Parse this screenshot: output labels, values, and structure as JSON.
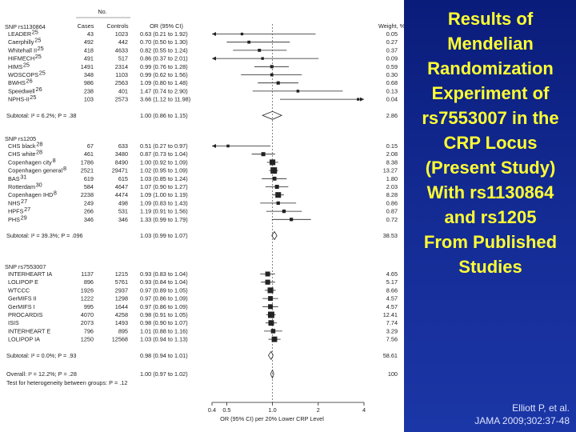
{
  "slide": {
    "title_lines": [
      "Results of",
      "Mendelian",
      "Randomization",
      "Experiment of",
      "rs7553007 in the",
      "CRP Locus",
      "(Present Study)",
      "With rs1130864",
      "and rs1205",
      "From Published",
      "Studies"
    ],
    "citation_lines": [
      "Elliott P, et al.",
      "JAMA 2009;302:37-48"
    ],
    "colors": {
      "background": "#13298f",
      "title": "#ffff33",
      "citation": "#dde3ff",
      "plot_background": "#ffffff"
    }
  },
  "chart_data": {
    "type": "forest",
    "headers": {
      "no": "No.",
      "cases": "Cases",
      "controls": "Controls",
      "or": "OR (95% CI)",
      "weight": "Weight, %"
    },
    "xaxis": {
      "scale": "log",
      "range": [
        0.4,
        4
      ],
      "ticks": [
        "0.4",
        "0.5",
        "1.0",
        "2",
        "4"
      ],
      "label": "OR (95% CI) per 20% Lower CRP Level",
      "reference": 1.0
    },
    "groups": [
      {
        "title": "SNP rs1130864",
        "studies": [
          {
            "name": "LEADER",
            "ref": "25",
            "cases": "43",
            "controls": "1023",
            "or_text": "0.63 (0.21 to 1.92)",
            "or": 0.63,
            "lo": 0.21,
            "hi": 1.92,
            "weight": "0.05"
          },
          {
            "name": "Caerphilly",
            "ref": "25",
            "cases": "492",
            "controls": "442",
            "or_text": "0.70 (0.50 to 1.30)",
            "or": 0.7,
            "lo": 0.5,
            "hi": 1.3,
            "weight": "0.27"
          },
          {
            "name": "Whitehall II",
            "ref": "25",
            "cases": "418",
            "controls": "4633",
            "or_text": "0.82 (0.55 to 1.24)",
            "or": 0.82,
            "lo": 0.55,
            "hi": 1.24,
            "weight": "0.37"
          },
          {
            "name": "HIFMECH",
            "ref": "25",
            "cases": "491",
            "controls": "517",
            "or_text": "0.86 (0.37 to 2.01)",
            "or": 0.86,
            "lo": 0.37,
            "hi": 2.01,
            "weight": "0.09"
          },
          {
            "name": "HIMS",
            "ref": "25",
            "cases": "1491",
            "controls": "2314",
            "or_text": "0.99 (0.76 to 1.28)",
            "or": 0.99,
            "lo": 0.76,
            "hi": 1.28,
            "weight": "0.59"
          },
          {
            "name": "WOSCOPS",
            "ref": "25",
            "cases": "348",
            "controls": "1103",
            "or_text": "0.99 (0.62 to 1.56)",
            "or": 0.99,
            "lo": 0.62,
            "hi": 1.56,
            "weight": "0.30"
          },
          {
            "name": "BWHS",
            "ref": "26",
            "cases": "986",
            "controls": "2563",
            "or_text": "1.09 (0.80 to 1.48)",
            "or": 1.09,
            "lo": 0.8,
            "hi": 1.48,
            "weight": "0.68"
          },
          {
            "name": "Speedwell",
            "ref": "26",
            "cases": "238",
            "controls": "401",
            "or_text": "1.47 (0.74 to 2.90)",
            "or": 1.47,
            "lo": 0.74,
            "hi": 2.9,
            "weight": "0.13"
          },
          {
            "name": "NPHS-II",
            "ref": "25",
            "cases": "103",
            "controls": "2573",
            "or_text": "3.66 (1.12 to 11.98)",
            "or": 3.66,
            "lo": 1.12,
            "hi": 11.98,
            "weight": "0.04"
          }
        ],
        "subtotal": {
          "label": "Subtotal: I² = 6.2%; P = .38",
          "or_text": "1.00 (0.86 to 1.15)",
          "or": 1.0,
          "lo": 0.86,
          "hi": 1.15,
          "weight": "2.86"
        }
      },
      {
        "title": "SNP rs1205",
        "studies": [
          {
            "name": "CHS black",
            "ref": "28",
            "cases": "67",
            "controls": "633",
            "or_text": "0.51 (0.27 to 0.97)",
            "or": 0.51,
            "lo": 0.27,
            "hi": 0.97,
            "weight": "0.15"
          },
          {
            "name": "CHS white",
            "ref": "28",
            "cases": "461",
            "controls": "3480",
            "or_text": "0.87 (0.73 to 1.04)",
            "or": 0.87,
            "lo": 0.73,
            "hi": 1.04,
            "weight": "2.08"
          },
          {
            "name": "Copenhagen city",
            "ref": "8",
            "cases": "1786",
            "controls": "8490",
            "or_text": "1.00 (0.92 to 1.09)",
            "or": 1.0,
            "lo": 0.92,
            "hi": 1.09,
            "weight": "8.38"
          },
          {
            "name": "Copenhagen general",
            "ref": "8",
            "cases": "2521",
            "controls": "29471",
            "or_text": "1.02 (0.95 to 1.09)",
            "or": 1.02,
            "lo": 0.95,
            "hi": 1.09,
            "weight": "13.27"
          },
          {
            "name": "BAS",
            "ref": "31",
            "cases": "619",
            "controls": "615",
            "or_text": "1.03 (0.85 to 1.24)",
            "or": 1.03,
            "lo": 0.85,
            "hi": 1.24,
            "weight": "1.80"
          },
          {
            "name": "Rotterdam",
            "ref": "30",
            "cases": "584",
            "controls": "4647",
            "or_text": "1.07 (0.90 to 1.27)",
            "or": 1.07,
            "lo": 0.9,
            "hi": 1.27,
            "weight": "2.03"
          },
          {
            "name": "Copenhagen IHD",
            "ref": "8",
            "cases": "2238",
            "controls": "4474",
            "or_text": "1.09 (1.00 to 1.19)",
            "or": 1.09,
            "lo": 1.0,
            "hi": 1.19,
            "weight": "8.28"
          },
          {
            "name": "NHS",
            "ref": "27",
            "cases": "249",
            "controls": "498",
            "or_text": "1.09 (0.83 to 1.43)",
            "or": 1.09,
            "lo": 0.83,
            "hi": 1.43,
            "weight": "0.86"
          },
          {
            "name": "HPFS",
            "ref": "27",
            "cases": "266",
            "controls": "531",
            "or_text": "1.19 (0.91 to 1.56)",
            "or": 1.19,
            "lo": 0.91,
            "hi": 1.56,
            "weight": "0.87"
          },
          {
            "name": "PHS",
            "ref": "29",
            "cases": "346",
            "controls": "346",
            "or_text": "1.33 (0.99 to 1.79)",
            "or": 1.33,
            "lo": 0.99,
            "hi": 1.79,
            "weight": "0.72"
          }
        ],
        "subtotal": {
          "label": "Subtotal: I² = 39.3%; P = .096",
          "or_text": "1.03 (0.99 to 1.07)",
          "or": 1.03,
          "lo": 0.99,
          "hi": 1.07,
          "weight": "38.53"
        }
      },
      {
        "title": "SNP rs7553007",
        "studies": [
          {
            "name": "INTERHEART IA",
            "ref": "",
            "cases": "1137",
            "controls": "1215",
            "or_text": "0.93 (0.83 to 1.04)",
            "or": 0.93,
            "lo": 0.83,
            "hi": 1.04,
            "weight": "4.65"
          },
          {
            "name": "LOLIPOP E",
            "ref": "",
            "cases": "896",
            "controls": "5761",
            "or_text": "0.93 (0.84 to 1.04)",
            "or": 0.93,
            "lo": 0.84,
            "hi": 1.04,
            "weight": "5.17"
          },
          {
            "name": "WTCCC",
            "ref": "",
            "cases": "1926",
            "controls": "2937",
            "or_text": "0.97 (0.89 to 1.05)",
            "or": 0.97,
            "lo": 0.89,
            "hi": 1.05,
            "weight": "8.66"
          },
          {
            "name": "GerMIFS II",
            "ref": "",
            "cases": "1222",
            "controls": "1298",
            "or_text": "0.97 (0.86 to 1.09)",
            "or": 0.97,
            "lo": 0.86,
            "hi": 1.09,
            "weight": "4.57"
          },
          {
            "name": "GerMIFS I",
            "ref": "",
            "cases": "995",
            "controls": "1644",
            "or_text": "0.97 (0.86 to 1.09)",
            "or": 0.97,
            "lo": 0.86,
            "hi": 1.09,
            "weight": "4.57"
          },
          {
            "name": "PROCARDIS",
            "ref": "",
            "cases": "4070",
            "controls": "4258",
            "or_text": "0.98 (0.91 to 1.05)",
            "or": 0.98,
            "lo": 0.91,
            "hi": 1.05,
            "weight": "12.41"
          },
          {
            "name": "ISIS",
            "ref": "",
            "cases": "2073",
            "controls": "1493",
            "or_text": "0.98 (0.90 to 1.07)",
            "or": 0.98,
            "lo": 0.9,
            "hi": 1.07,
            "weight": "7.74"
          },
          {
            "name": "INTERHEART E",
            "ref": "",
            "cases": "796",
            "controls": "895",
            "or_text": "1.01 (0.88 to 1.16)",
            "or": 1.01,
            "lo": 0.88,
            "hi": 1.16,
            "weight": "3.29"
          },
          {
            "name": "LOLIPOP IA",
            "ref": "",
            "cases": "1250",
            "controls": "12568",
            "or_text": "1.03 (0.94 to 1.13)",
            "or": 1.03,
            "lo": 0.94,
            "hi": 1.13,
            "weight": "7.56"
          }
        ],
        "subtotal": {
          "label": "Subtotal: I² = 0.0%; P = .93",
          "or_text": "0.98 (0.94 to 1.01)",
          "or": 0.98,
          "lo": 0.94,
          "hi": 1.01,
          "weight": "58.61"
        }
      }
    ],
    "overall": {
      "label": "Overall: I² = 12.2%; P = .28",
      "or_text": "1.00 (0.97 to 1.02)",
      "or": 1.0,
      "lo": 0.97,
      "hi": 1.02,
      "weight": "100"
    },
    "heterogeneity_note": "Test for heterogeneity between groups: P = .12"
  }
}
